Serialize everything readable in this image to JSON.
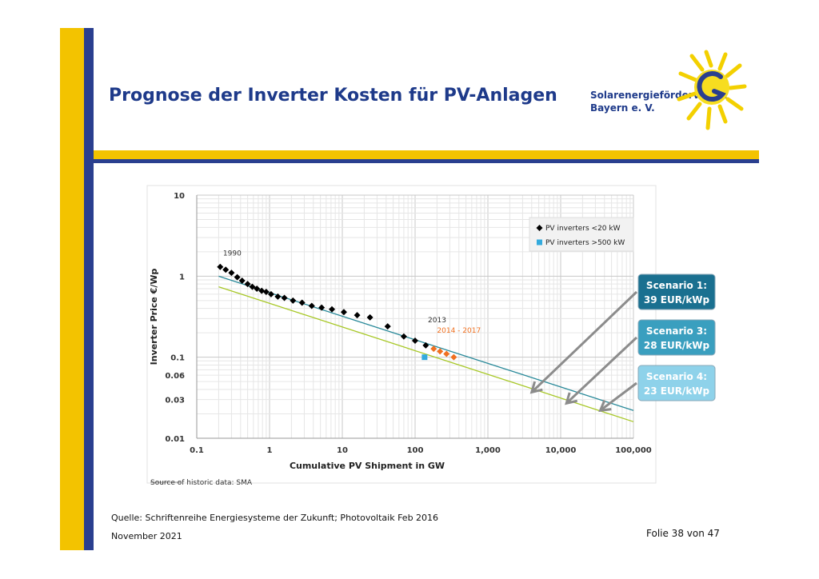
{
  "slide": {
    "title": "Prognose der Inverter Kosten für PV-Anlagen",
    "logo_line1": "Solarenergieförderverein",
    "logo_line2": "Bayern e. V.",
    "source": "Quelle: Schriftenreihe Energiesysteme der Zukunft; Photovoltaik Feb 2016",
    "date": "November 2021",
    "page": "Folie 38 von 47"
  },
  "colors": {
    "brand_yellow": "#f3c300",
    "brand_blue": "#2a3f8f",
    "title_blue": "#1e3a8a",
    "historic": "#000000",
    "forecast": "#f07020",
    "large_inverter": "#33aadd",
    "trend_teal": "#2a8a9a",
    "trend_green": "#a8c828",
    "scenario1": "#1a7090",
    "scenario3": "#3a9fbf",
    "scenario4": "#8ed2ea"
  },
  "chart_data": {
    "type": "scatter",
    "x_scale": "log",
    "y_scale": "log",
    "xlim": [
      0.1,
      100000
    ],
    "ylim": [
      0.01,
      10
    ],
    "xlabel": "Cumulative PV Shipment in GW",
    "ylabel": "Inverter Price €/Wp",
    "x_ticks": [
      "0.1",
      "1",
      "10",
      "100",
      "1,000",
      "10,000",
      "100,000"
    ],
    "y_ticks": [
      "0.01",
      "0.03",
      "0.06",
      "0.1",
      "1",
      "10"
    ],
    "grid": true,
    "legend_position": "top-right",
    "series": [
      {
        "name": "PV inverters <20 kW",
        "color": "#000000",
        "marker": "diamond",
        "points": [
          [
            0.21,
            1.3
          ],
          [
            0.25,
            1.2
          ],
          [
            0.3,
            1.1
          ],
          [
            0.36,
            0.97
          ],
          [
            0.42,
            0.88
          ],
          [
            0.5,
            0.8
          ],
          [
            0.58,
            0.74
          ],
          [
            0.67,
            0.7
          ],
          [
            0.78,
            0.66
          ],
          [
            0.9,
            0.64
          ],
          [
            1.05,
            0.6
          ],
          [
            1.3,
            0.56
          ],
          [
            1.6,
            0.54
          ],
          [
            2.1,
            0.5
          ],
          [
            2.8,
            0.47
          ],
          [
            3.8,
            0.43
          ],
          [
            5.2,
            0.41
          ],
          [
            7.2,
            0.39
          ],
          [
            10.5,
            0.36
          ],
          [
            16,
            0.33
          ],
          [
            24,
            0.31
          ],
          [
            42,
            0.24
          ],
          [
            70,
            0.18
          ],
          [
            100,
            0.16
          ],
          [
            140,
            0.14
          ]
        ]
      },
      {
        "name": "PV inverters >500 kW",
        "color": "#33aadd",
        "marker": "square",
        "points": [
          [
            135,
            0.1
          ]
        ]
      },
      {
        "name": "2014 - 2017",
        "color": "#f07020",
        "marker": "diamond",
        "points": [
          [
            180,
            0.127
          ],
          [
            220,
            0.118
          ],
          [
            270,
            0.11
          ],
          [
            340,
            0.1
          ]
        ]
      }
    ],
    "trend_lines": [
      {
        "color": "#2a8a9a",
        "from": [
          0.2,
          1.0
        ],
        "to": [
          100000,
          0.022
        ]
      },
      {
        "color": "#a8c828",
        "from": [
          0.2,
          0.74
        ],
        "to": [
          100000,
          0.016
        ]
      }
    ],
    "annotations": [
      {
        "text": "1990",
        "x": 0.23,
        "y": 1.8,
        "color": "#333333"
      },
      {
        "text": "2013",
        "x": 150,
        "y": 0.27,
        "color": "#333333"
      },
      {
        "text": "2014 - 2017",
        "x": 200,
        "y": 0.2,
        "color": "#f07020"
      }
    ],
    "scenarios": [
      {
        "line1": "Scenario 1:",
        "line2": "39 EUR/kWp",
        "color": "#1a7090",
        "arrow_to": [
          4000,
          0.037
        ]
      },
      {
        "line1": "Scenario 3:",
        "line2": "28 EUR/kWp",
        "color": "#3a9fbf",
        "arrow_to": [
          12000,
          0.027
        ]
      },
      {
        "line1": "Scenario 4:",
        "line2": "23 EUR/kWp",
        "color": "#8ed2ea",
        "arrow_to": [
          35000,
          0.022
        ]
      }
    ],
    "source_note": "Source of historic data: SMA"
  }
}
